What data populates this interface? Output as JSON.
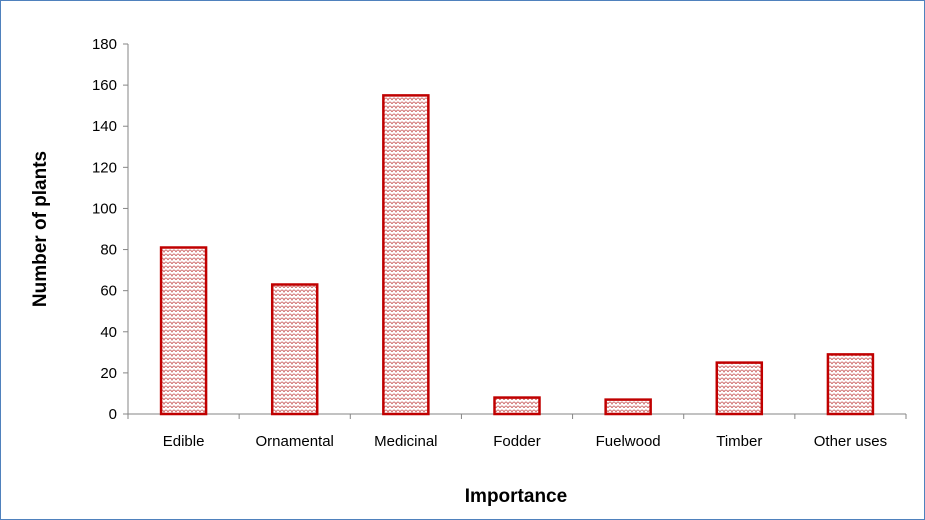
{
  "chart_data": {
    "type": "bar",
    "categories": [
      "Edible",
      "Ornamental",
      "Medicinal",
      "Fodder",
      "Fuelwood",
      "Timber",
      "Other uses"
    ],
    "values": [
      81,
      63,
      155,
      8,
      7,
      25,
      29
    ],
    "title": "",
    "xlabel": "Importance",
    "ylabel": "Number of plants",
    "ylim": [
      0,
      180
    ],
    "yticks": [
      0,
      20,
      40,
      60,
      80,
      100,
      120,
      140,
      160,
      180
    ],
    "grid": false,
    "legend": "none",
    "colors": {
      "bar_border": "#c00000",
      "bar_pattern_fill": "#f2c4c4",
      "frame_border": "#4f81bd",
      "axis": "#868686"
    }
  }
}
